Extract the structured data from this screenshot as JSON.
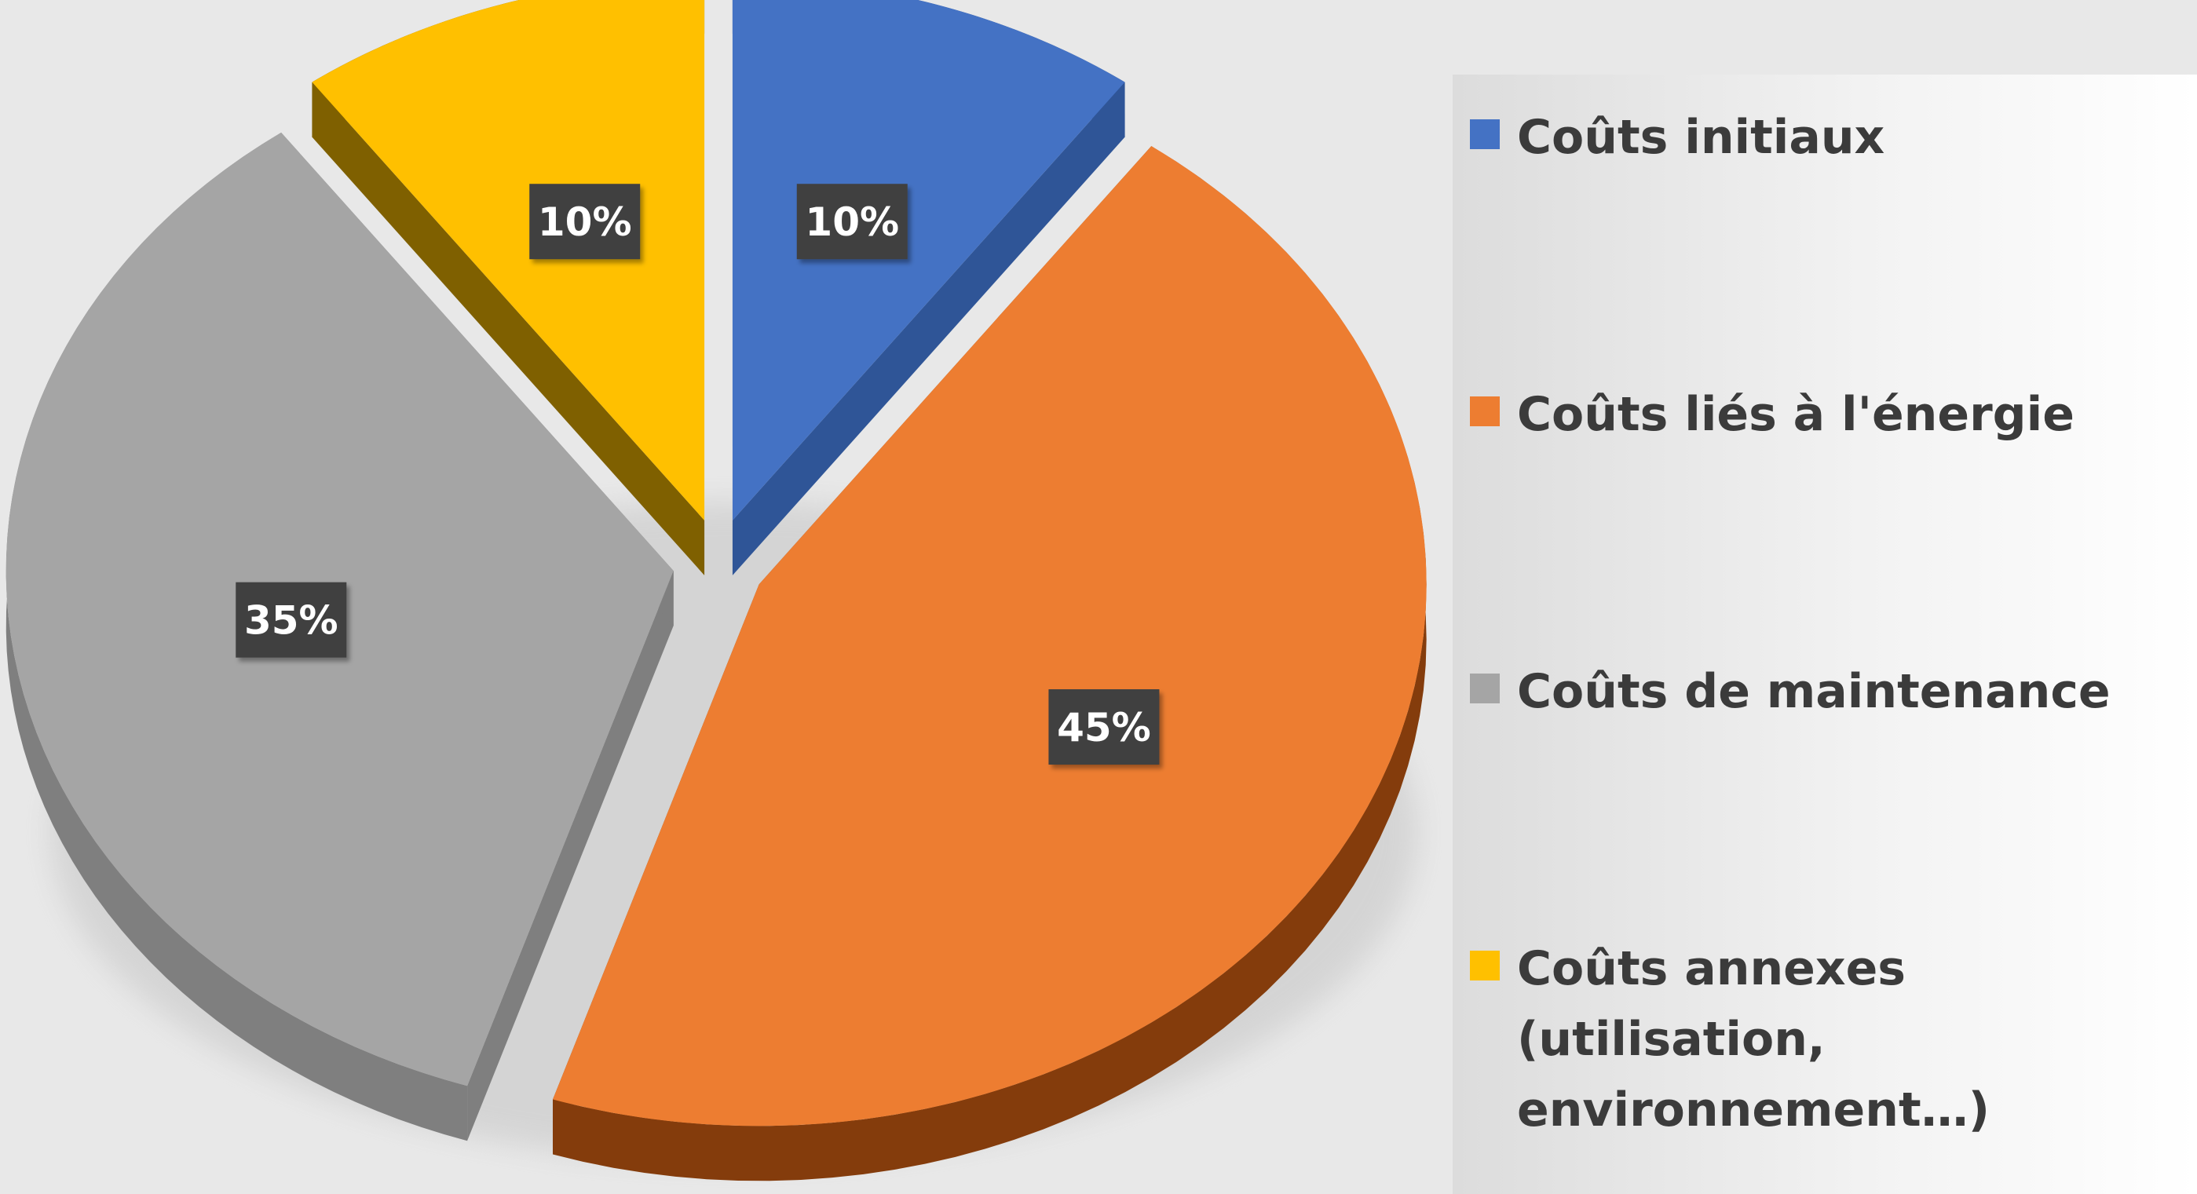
{
  "chart_data": {
    "type": "pie",
    "categories": [
      "Coûts initiaux",
      "Coûts liés à l'énergie",
      "Coûts de maintenance",
      "Coûts annexes (utilisation, environnement…)"
    ],
    "values": [
      10,
      45,
      35,
      10
    ],
    "data_labels": [
      "10%",
      "45%",
      "35%",
      "10%"
    ],
    "colors": [
      "#4472c4",
      "#ed7d31",
      "#a5a5a5",
      "#ffc000"
    ],
    "exploded": true,
    "style": "3d",
    "legend_position": "right"
  }
}
